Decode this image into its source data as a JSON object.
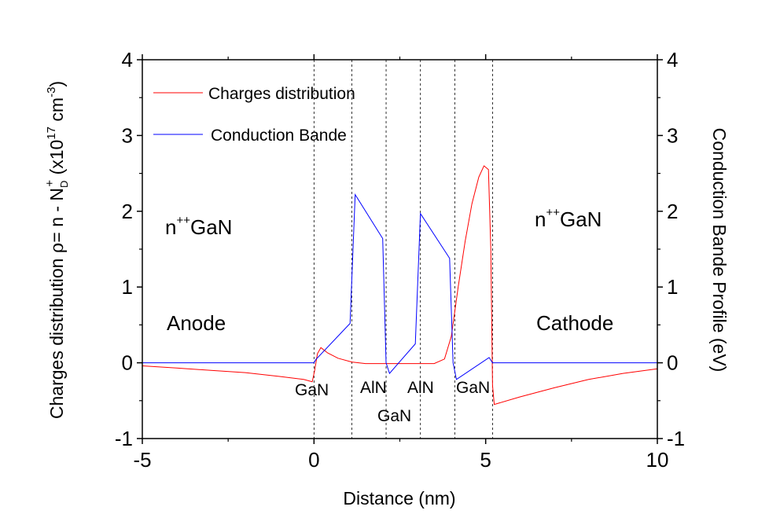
{
  "chart_data": {
    "type": "line",
    "title": "",
    "xlabel": "Distance (nm)",
    "ylabel_left": {
      "main": "Charges distribution ",
      "rho": "ρ",
      "eq": "= n - N",
      "sub": "D",
      "sup": "+",
      "unit_a": " (x10",
      "unit_exp": "17",
      "unit_b": " cm",
      "unit_exp2": "-3",
      "unit_c": ")"
    },
    "ylabel_right": "Conduction Bande Profile (eV)",
    "xlim": [
      -5,
      10
    ],
    "ylim_left": [
      -1,
      4
    ],
    "ylim_right": [
      -1,
      4
    ],
    "x_ticks": [
      {
        "v": -5,
        "label": "-5"
      },
      {
        "v": 0,
        "label": "0"
      },
      {
        "v": 5,
        "label": "5"
      },
      {
        "v": 10,
        "label": "10"
      }
    ],
    "y_ticks": [
      {
        "v": -1,
        "label": "-1"
      },
      {
        "v": 0,
        "label": "0"
      },
      {
        "v": 1,
        "label": "1"
      },
      {
        "v": 2,
        "label": "2"
      },
      {
        "v": 3,
        "label": "3"
      },
      {
        "v": 4,
        "label": "4"
      }
    ],
    "grid": false,
    "legend_position": "top-left",
    "series": [
      {
        "name": "Charges distribution",
        "axis": "left",
        "color": "#ff0000",
        "points": [
          [
            -5,
            -0.04
          ],
          [
            -4,
            -0.07
          ],
          [
            -3,
            -0.1
          ],
          [
            -2,
            -0.13
          ],
          [
            -1,
            -0.18
          ],
          [
            -0.3,
            -0.22
          ],
          [
            -0.05,
            -0.25
          ],
          [
            0.02,
            -0.1
          ],
          [
            0.1,
            0.12
          ],
          [
            0.2,
            0.2
          ],
          [
            0.4,
            0.13
          ],
          [
            0.7,
            0.06
          ],
          [
            1.1,
            0.01
          ],
          [
            1.5,
            -0.01
          ],
          [
            2.5,
            -0.01
          ],
          [
            3.5,
            -0.01
          ],
          [
            3.8,
            0.05
          ],
          [
            4.0,
            0.35
          ],
          [
            4.2,
            1.0
          ],
          [
            4.4,
            1.6
          ],
          [
            4.6,
            2.1
          ],
          [
            4.8,
            2.45
          ],
          [
            4.95,
            2.6
          ],
          [
            5.08,
            2.55
          ],
          [
            5.15,
            1.5
          ],
          [
            5.2,
            -0.3
          ],
          [
            5.25,
            -0.55
          ],
          [
            6,
            -0.45
          ],
          [
            7,
            -0.33
          ],
          [
            8,
            -0.22
          ],
          [
            9,
            -0.14
          ],
          [
            10,
            -0.08
          ]
        ]
      },
      {
        "name": "Conduction Bande",
        "axis": "right",
        "color": "#0000ff",
        "points": [
          [
            -5,
            0
          ],
          [
            0,
            0
          ],
          [
            0.05,
            0.04
          ],
          [
            1.05,
            0.52
          ],
          [
            1.2,
            2.22
          ],
          [
            2.0,
            1.64
          ],
          [
            2.1,
            0.0
          ],
          [
            2.2,
            -0.14
          ],
          [
            2.95,
            0.25
          ],
          [
            3.1,
            1.97
          ],
          [
            3.95,
            1.38
          ],
          [
            4.05,
            0.0
          ],
          [
            4.15,
            -0.22
          ],
          [
            5.1,
            0.07
          ],
          [
            5.2,
            0.0
          ],
          [
            10,
            0
          ]
        ]
      }
    ],
    "layer_boundaries": [
      0,
      1.1,
      2.1,
      3.1,
      4.1,
      5.2
    ],
    "annotations": {
      "left_region": {
        "prefix": "n",
        "sup": "++",
        "suffix": "GaN"
      },
      "right_region": {
        "prefix": "n",
        "sup": "++",
        "suffix": "GaN"
      },
      "anode": "Anode",
      "cathode": "Cathode",
      "layers": [
        "GaN",
        "AlN",
        "AlN",
        "GaN",
        "GaN"
      ]
    }
  }
}
